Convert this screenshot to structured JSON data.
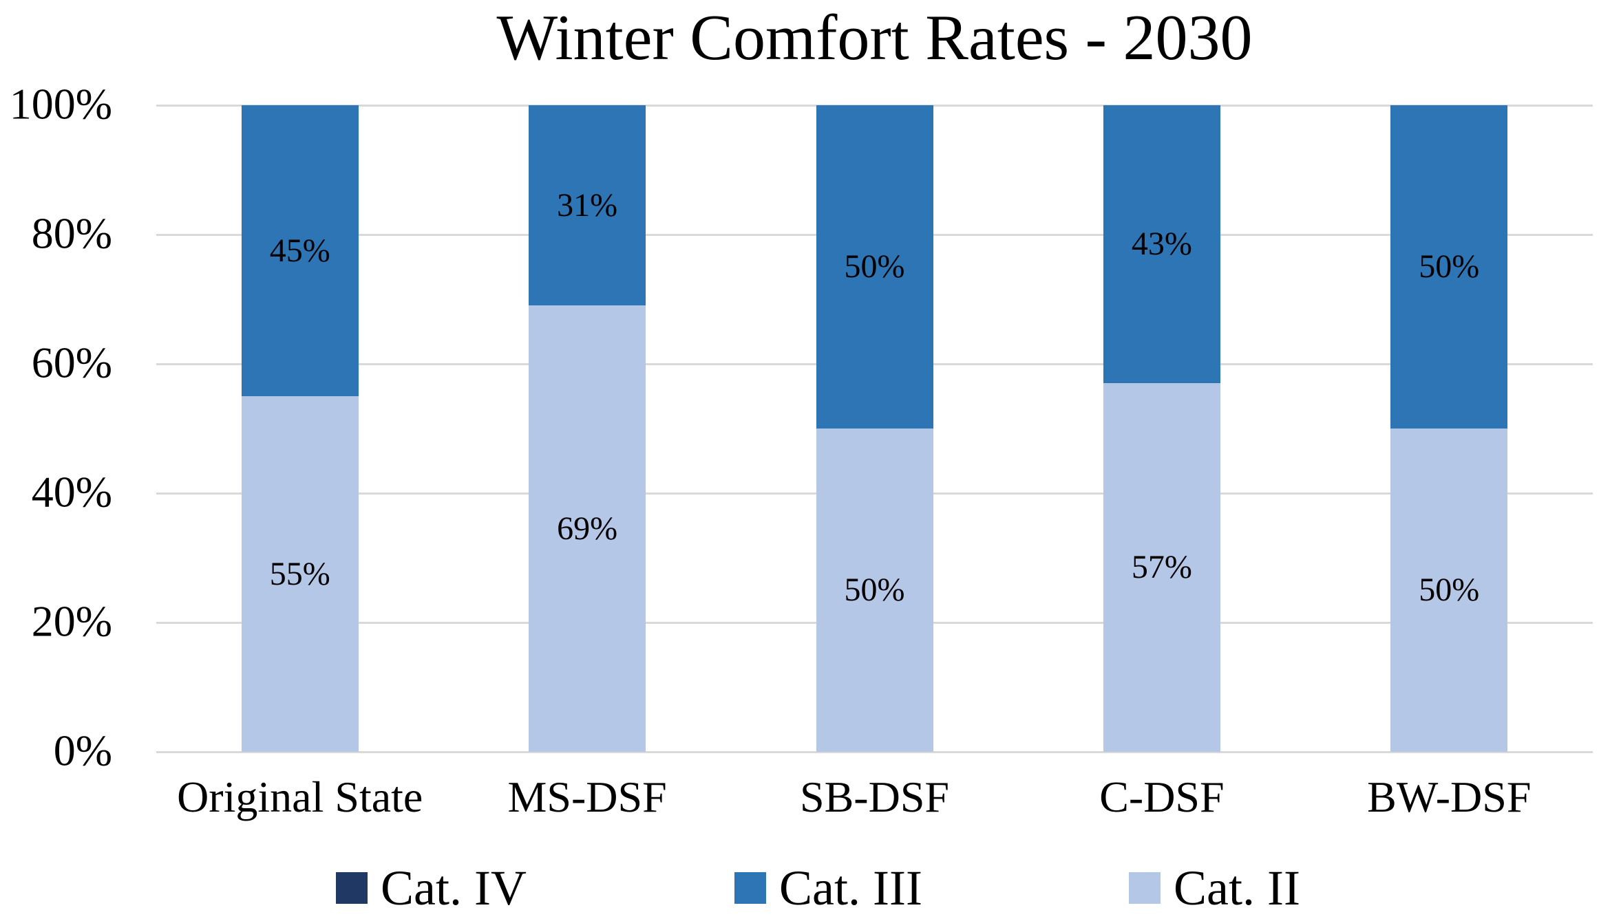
{
  "chart_data": {
    "type": "bar",
    "stacked": true,
    "percent_stacked": true,
    "title": "Winter Comfort Rates - 2030",
    "categories": [
      "Original State",
      "MS-DSF",
      "SB-DSF",
      "C-DSF",
      "BW-DSF"
    ],
    "series": [
      {
        "name": "Cat. IV",
        "color": "#1F3864",
        "values": [
          0,
          0,
          0,
          0,
          0
        ]
      },
      {
        "name": "Cat. III",
        "color": "#2E75B6",
        "values": [
          45,
          31,
          50,
          43,
          50
        ]
      },
      {
        "name": "Cat. II",
        "color": "#B4C7E7",
        "values": [
          55,
          69,
          50,
          57,
          50
        ]
      }
    ],
    "data_labels": {
      "Cat. III": [
        "45%",
        "31%",
        "50%",
        "43%",
        "50%"
      ],
      "Cat. II": [
        "55%",
        "69%",
        "50%",
        "57%",
        "50%"
      ]
    },
    "stack_order_bottom_to_top": [
      "Cat. II",
      "Cat. III",
      "Cat. IV"
    ],
    "y_axis": {
      "min": 0,
      "max": 100,
      "ticks": [
        0,
        20,
        40,
        60,
        80,
        100
      ],
      "tick_labels": [
        "0%",
        "20%",
        "40%",
        "60%",
        "80%",
        "100%"
      ]
    },
    "grid": true,
    "gridline_color": "#D9D9D9",
    "legend": {
      "position": "bottom",
      "entries": [
        "Cat. IV",
        "Cat. III",
        "Cat. II"
      ]
    },
    "text_color": "#000000",
    "background_color": "#FFFFFF"
  }
}
